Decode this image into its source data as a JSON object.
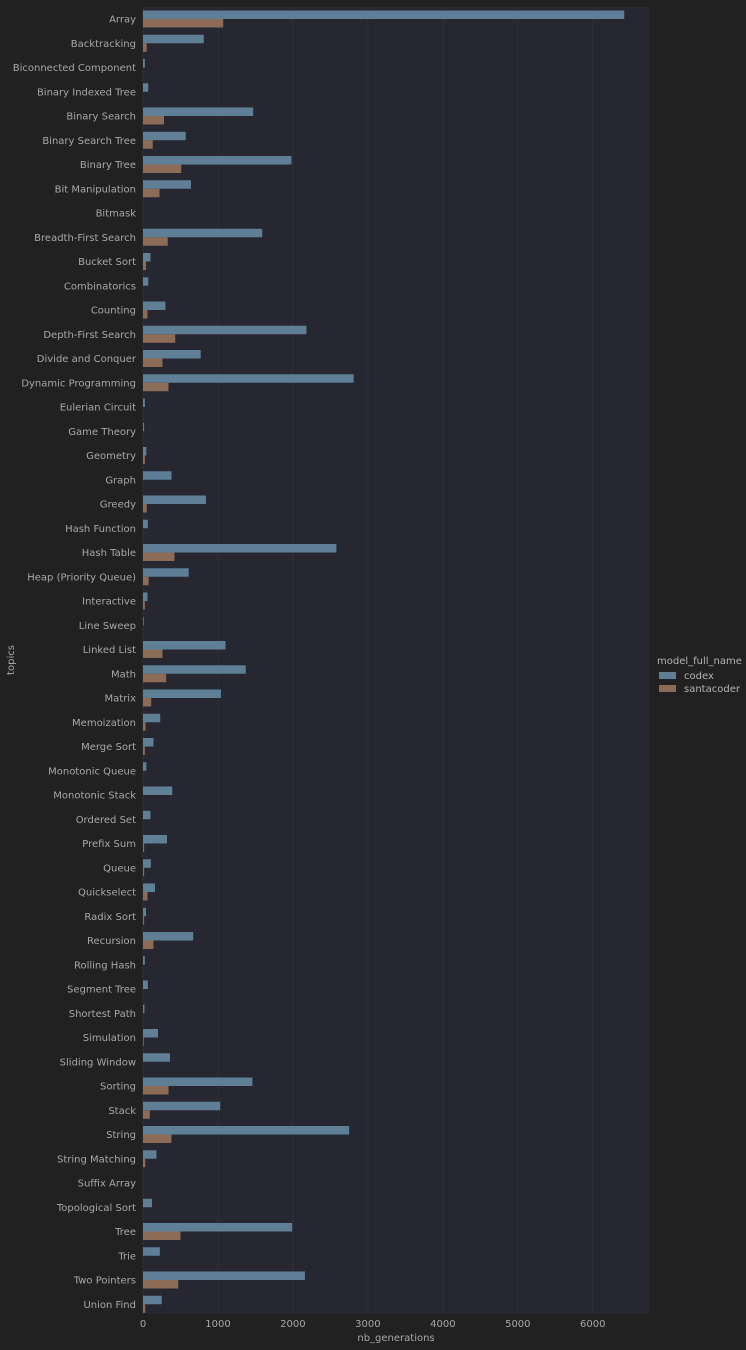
{
  "chart_data": {
    "type": "bar",
    "orientation": "horizontal",
    "xlabel": "nb_generations",
    "ylabel": "topics",
    "xlim": [
      0,
      6750
    ],
    "xticks": [
      0,
      1000,
      2000,
      3000,
      4000,
      5000,
      6000
    ],
    "grid": true,
    "legend": {
      "title": "model_full_name",
      "position": "right"
    },
    "categories": [
      "Array",
      "Backtracking",
      "Biconnected Component",
      "Binary Indexed Tree",
      "Binary Search",
      "Binary Search Tree",
      "Binary Tree",
      "Bit Manipulation",
      "Bitmask",
      "Breadth-First Search",
      "Bucket Sort",
      "Combinatorics",
      "Counting",
      "Depth-First Search",
      "Divide and Conquer",
      "Dynamic Programming",
      "Eulerian Circuit",
      "Game Theory",
      "Geometry",
      "Graph",
      "Greedy",
      "Hash Function",
      "Hash Table",
      "Heap (Priority Queue)",
      "Interactive",
      "Line Sweep",
      "Linked List",
      "Math",
      "Matrix",
      "Memoization",
      "Merge Sort",
      "Monotonic Queue",
      "Monotonic Stack",
      "Ordered Set",
      "Prefix Sum",
      "Queue",
      "Quickselect",
      "Radix Sort",
      "Recursion",
      "Rolling Hash",
      "Segment Tree",
      "Shortest Path",
      "Simulation",
      "Sliding Window",
      "Sorting",
      "Stack",
      "String",
      "String Matching",
      "Suffix Array",
      "Topological Sort",
      "Tree",
      "Trie",
      "Two Pointers",
      "Union Find"
    ],
    "series": [
      {
        "name": "codex",
        "color": "#5f7f97",
        "values": [
          6420,
          810,
          25,
          70,
          1470,
          570,
          1980,
          640,
          0,
          1590,
          100,
          70,
          300,
          2180,
          770,
          2810,
          25,
          15,
          45,
          380,
          840,
          65,
          2580,
          610,
          60,
          10,
          1100,
          1370,
          1040,
          230,
          140,
          45,
          390,
          100,
          320,
          105,
          160,
          40,
          670,
          25,
          65,
          20,
          200,
          360,
          1460,
          1030,
          2750,
          180,
          0,
          120,
          1990,
          225,
          2160,
          250
        ]
      },
      {
        "name": "santacoder",
        "color": "#8c6b57",
        "values": [
          1070,
          50,
          0,
          0,
          280,
          130,
          510,
          220,
          0,
          330,
          40,
          0,
          60,
          430,
          260,
          340,
          0,
          0,
          25,
          0,
          50,
          0,
          420,
          75,
          25,
          0,
          260,
          310,
          110,
          35,
          25,
          0,
          0,
          0,
          15,
          15,
          60,
          15,
          140,
          0,
          0,
          0,
          10,
          0,
          340,
          90,
          380,
          30,
          0,
          0,
          500,
          0,
          470,
          30
        ]
      }
    ]
  }
}
